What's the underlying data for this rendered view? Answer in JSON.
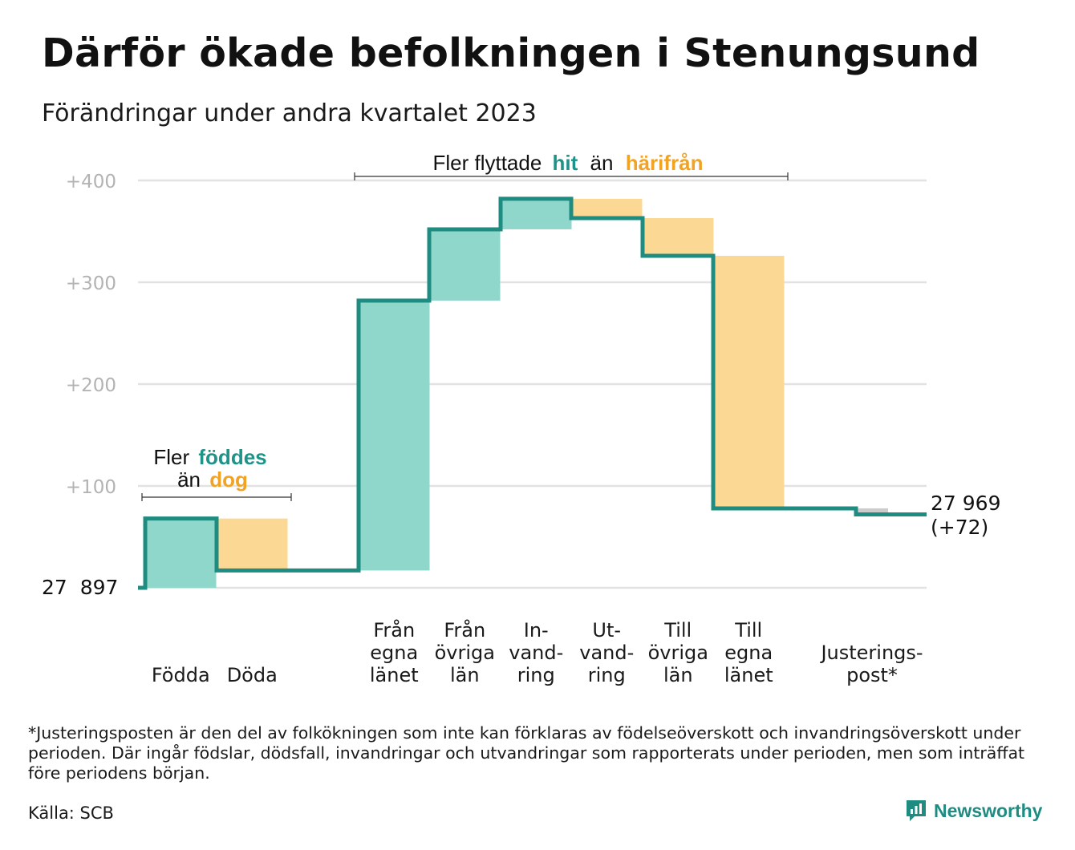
{
  "title": "Därför ökade befolkningen i Stenungsund",
  "subtitle": "Förändringar under andra kvartalet 2023",
  "colors": {
    "increase_bar": "#8fd6cb",
    "decrease_bar": "#fcd895",
    "adjustment_bar": "#cccccc",
    "step_line": "#1e8c80",
    "teal_text": "#1e9488",
    "orange_text": "#f2a324",
    "grid": "#e2e2e2",
    "tick_text": "#b3b3b3"
  },
  "annotations": {
    "births": {
      "line1_plain": "Fler",
      "line1_highlight": "föddes",
      "line2_plain": "än",
      "line2_highlight": "dog"
    },
    "migration": {
      "plain1": "Fler flyttade",
      "highlight1": "hit",
      "plain2": "än",
      "highlight2": "härifrån"
    }
  },
  "chart_data": {
    "type": "waterfall",
    "start_label": "27  897",
    "start_value": 0,
    "y_ticks": [
      {
        "value": 100,
        "label": "+100"
      },
      {
        "value": 200,
        "label": "+200"
      },
      {
        "value": 300,
        "label": "+300"
      },
      {
        "value": 400,
        "label": "+400"
      }
    ],
    "ylim": [
      0,
      400
    ],
    "grid": true,
    "steps": [
      {
        "label": [
          "Födda"
        ],
        "change": 68,
        "kind": "increase"
      },
      {
        "label": [
          "Döda"
        ],
        "change": -51,
        "kind": "decrease"
      },
      {
        "label": [
          "Från",
          "egna",
          "länet"
        ],
        "change": 265,
        "kind": "increase"
      },
      {
        "label": [
          "Från",
          "övriga",
          "län"
        ],
        "change": 70,
        "kind": "increase"
      },
      {
        "label": [
          "In-",
          "vand-",
          "ring"
        ],
        "change": 30,
        "kind": "increase"
      },
      {
        "label": [
          "Ut-",
          "vand-",
          "ring"
        ],
        "change": -19,
        "kind": "decrease"
      },
      {
        "label": [
          "Till",
          "övriga",
          "län"
        ],
        "change": -37,
        "kind": "decrease"
      },
      {
        "label": [
          "Till",
          "egna",
          "länet"
        ],
        "change": -248,
        "kind": "decrease"
      },
      {
        "label": [
          "Justerings-",
          "post*"
        ],
        "change": -6,
        "kind": "adjustment"
      }
    ],
    "end_label_line1": "27 969",
    "end_label_line2": "(+72)"
  },
  "footnote": "*Justeringsposten är den del av folkökningen som inte kan förklaras av födelseöverskott och invandringsöverskott under perioden. Där ingår födslar, dödsfall, invandringar och utvandringar som rapporterats under perioden, men som inträffat före periodens början.",
  "source": "Källa: SCB",
  "brand": "Newsworthy"
}
